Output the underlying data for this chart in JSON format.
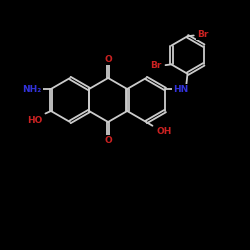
{
  "bg_color": "#000000",
  "bond_color": "#cccccc",
  "NH2_color": "#3333dd",
  "NH_color": "#3333dd",
  "O_color": "#cc2222",
  "OH_color": "#cc2222",
  "Br_color": "#cc2222",
  "lw": 1.3,
  "dbl_off": 0.055,
  "figsize": [
    2.5,
    2.5
  ],
  "dpi": 100,
  "xlim": [
    0,
    10
  ],
  "ylim": [
    0,
    10
  ]
}
